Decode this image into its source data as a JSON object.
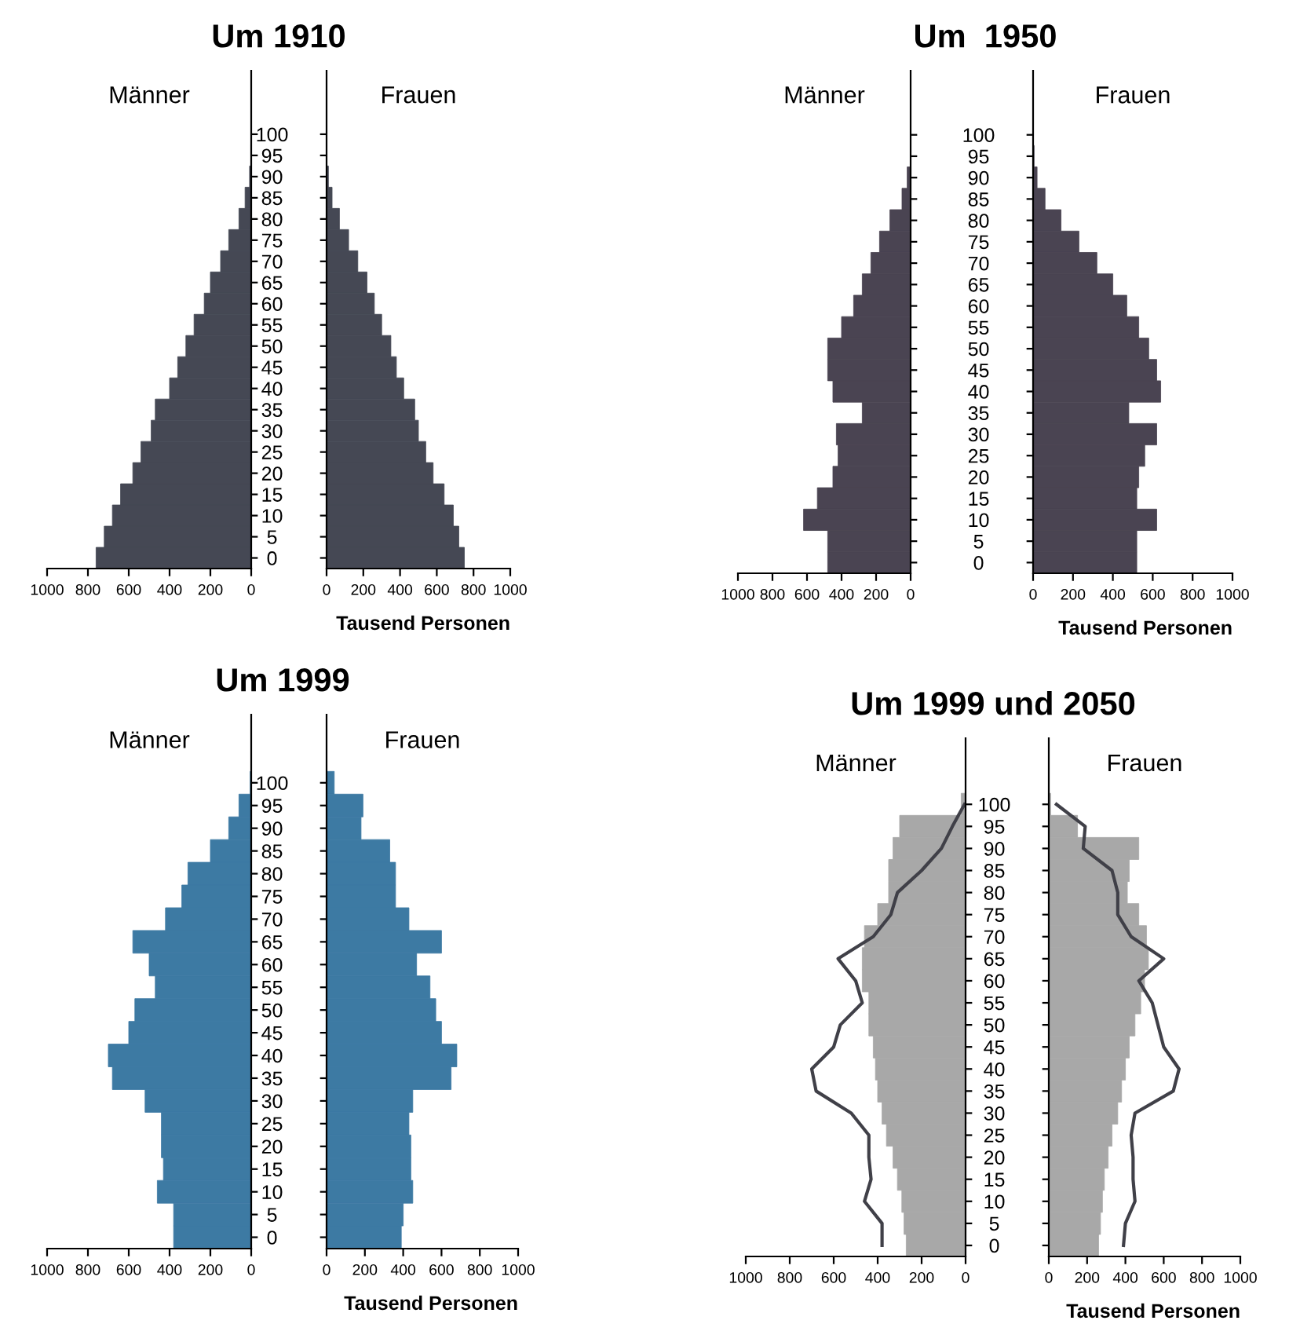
{
  "chart_data": [
    {
      "type": "bar",
      "orientation": "horizontal",
      "title": "Um 1910",
      "annotations": [
        "Männer"
      ],
      "tick_labels": "x",
      "categories": [
        "100",
        "95",
        "90",
        "85",
        "80",
        "75",
        "70",
        "65",
        "60",
        "55",
        "50",
        "45",
        "40",
        "35",
        "30",
        "25",
        "20",
        "15",
        "10",
        "5",
        "0"
      ],
      "xlim": [
        1000,
        0
      ],
      "xticks": [
        1000,
        800,
        600,
        400,
        200,
        0
      ],
      "series": [
        {
          "color": "#454854",
          "values": [
            0,
            2,
            8,
            30,
            60,
            110,
            150,
            200,
            230,
            280,
            320,
            360,
            400,
            470,
            490,
            540,
            580,
            640,
            680,
            720,
            760
          ]
        }
      ]
    },
    {
      "type": "bar",
      "orientation": "horizontal",
      "xlabel": "Tausend Personen",
      "annotations": [
        "Frauen"
      ],
      "categories": [
        "100",
        "95",
        "90",
        "85",
        "80",
        "75",
        "70",
        "65",
        "60",
        "55",
        "50",
        "45",
        "40",
        "35",
        "30",
        "25",
        "20",
        "15",
        "10",
        "5",
        "0"
      ],
      "xlim": [
        0,
        1000
      ],
      "xticks": [
        0,
        200,
        400,
        600,
        800,
        1000
      ],
      "series": [
        {
          "color": "#454854",
          "values": [
            0,
            0,
            10,
            30,
            70,
            120,
            170,
            220,
            260,
            300,
            350,
            380,
            420,
            480,
            500,
            540,
            580,
            640,
            690,
            720,
            750
          ]
        }
      ]
    },
    {
      "type": "bar",
      "orientation": "horizontal",
      "title": "Um  1950",
      "annotations": [
        "Männer"
      ],
      "tick_labels": "x",
      "categories": [
        "100",
        "95",
        "90",
        "85",
        "80",
        "75",
        "70",
        "65",
        "60",
        "55",
        "50",
        "45",
        "40",
        "35",
        "30",
        "25",
        "20",
        "15",
        "10",
        "5",
        "0"
      ],
      "xlim": [
        1000,
        0
      ],
      "xticks": [
        1000,
        800,
        600,
        400,
        200,
        0
      ],
      "series": [
        {
          "color": "#4a4452",
          "values": [
            0,
            0,
            20,
            50,
            120,
            180,
            230,
            280,
            330,
            400,
            480,
            480,
            450,
            280,
            430,
            420,
            450,
            540,
            620,
            480,
            480
          ]
        }
      ]
    },
    {
      "type": "bar",
      "orientation": "horizontal",
      "xlabel": "Tausend Personen",
      "annotations": [
        "Frauen"
      ],
      "categories": [
        "100",
        "95",
        "90",
        "85",
        "80",
        "75",
        "70",
        "65",
        "60",
        "55",
        "50",
        "45",
        "40",
        "35",
        "30",
        "25",
        "20",
        "15",
        "10",
        "5",
        "0"
      ],
      "xlim": [
        0,
        1000
      ],
      "xticks": [
        0,
        200,
        400,
        600,
        800,
        1000
      ],
      "series": [
        {
          "color": "#4a4452",
          "values": [
            0,
            5,
            20,
            60,
            140,
            230,
            320,
            400,
            470,
            530,
            580,
            620,
            640,
            480,
            620,
            560,
            530,
            520,
            620,
            520,
            520
          ]
        }
      ]
    },
    {
      "type": "bar",
      "orientation": "horizontal",
      "title": "Um 1999",
      "annotations": [
        "Männer"
      ],
      "tick_labels": "x",
      "categories": [
        "100",
        "95",
        "90",
        "85",
        "80",
        "75",
        "70",
        "65",
        "60",
        "55",
        "50",
        "45",
        "40",
        "35",
        "30",
        "25",
        "20",
        "15",
        "10",
        "5",
        "0"
      ],
      "xlim": [
        1000,
        0
      ],
      "xticks": [
        1000,
        800,
        600,
        400,
        200,
        0
      ],
      "series": [
        {
          "color": "#3d7aa3",
          "values": [
            5,
            60,
            110,
            200,
            310,
            340,
            420,
            580,
            500,
            470,
            570,
            600,
            700,
            680,
            520,
            440,
            440,
            430,
            460,
            380,
            380
          ]
        }
      ]
    },
    {
      "type": "bar",
      "orientation": "horizontal",
      "xlabel": "Tausend Personen",
      "annotations": [
        "Frauen"
      ],
      "categories": [
        "100",
        "95",
        "90",
        "85",
        "80",
        "75",
        "70",
        "65",
        "60",
        "55",
        "50",
        "45",
        "40",
        "35",
        "30",
        "25",
        "20",
        "15",
        "10",
        "5",
        "0"
      ],
      "xlim": [
        0,
        1000
      ],
      "xticks": [
        0,
        200,
        400,
        600,
        800,
        1000
      ],
      "series": [
        {
          "color": "#3d7aa3",
          "values": [
            40,
            190,
            180,
            330,
            360,
            360,
            430,
            600,
            470,
            540,
            570,
            600,
            680,
            650,
            450,
            430,
            440,
            440,
            450,
            400,
            390
          ]
        }
      ]
    },
    {
      "type": "bar",
      "orientation": "horizontal",
      "title": "Um 1999 und 2050",
      "annotations": [
        "Männer"
      ],
      "tick_labels": "x",
      "categories": [
        "100",
        "95",
        "90",
        "85",
        "80",
        "75",
        "70",
        "65",
        "60",
        "55",
        "50",
        "45",
        "40",
        "35",
        "30",
        "25",
        "20",
        "15",
        "10",
        "5",
        "0"
      ],
      "xlim": [
        1000,
        0
      ],
      "xticks": [
        1000,
        800,
        600,
        400,
        200,
        0
      ],
      "series": [
        {
          "color": "#a8a8a8",
          "values": [
            20,
            300,
            330,
            350,
            350,
            400,
            460,
            470,
            470,
            440,
            440,
            420,
            410,
            400,
            380,
            360,
            330,
            310,
            290,
            280,
            270
          ]
        },
        {
          "type": "line",
          "color": "#404048",
          "values": [
            5,
            60,
            110,
            200,
            310,
            340,
            420,
            580,
            500,
            470,
            570,
            600,
            700,
            680,
            520,
            440,
            440,
            430,
            460,
            380,
            380
          ]
        }
      ]
    },
    {
      "type": "bar",
      "orientation": "horizontal",
      "xlabel": "Tausend Personen",
      "annotations": [
        "Frauen"
      ],
      "categories": [
        "100",
        "95",
        "90",
        "85",
        "80",
        "75",
        "70",
        "65",
        "60",
        "55",
        "50",
        "45",
        "40",
        "35",
        "30",
        "25",
        "20",
        "15",
        "10",
        "5",
        "0"
      ],
      "xlim": [
        0,
        1000
      ],
      "xticks": [
        0,
        200,
        400,
        600,
        800,
        1000
      ],
      "series": [
        {
          "color": "#a8a8a8",
          "values": [
            10,
            150,
            470,
            420,
            410,
            470,
            510,
            520,
            500,
            480,
            450,
            420,
            400,
            380,
            360,
            330,
            310,
            290,
            280,
            270,
            260
          ]
        },
        {
          "type": "line",
          "color": "#404048",
          "values": [
            40,
            190,
            180,
            330,
            360,
            360,
            430,
            600,
            470,
            540,
            570,
            600,
            680,
            650,
            450,
            430,
            440,
            440,
            450,
            400,
            390
          ]
        }
      ]
    }
  ]
}
